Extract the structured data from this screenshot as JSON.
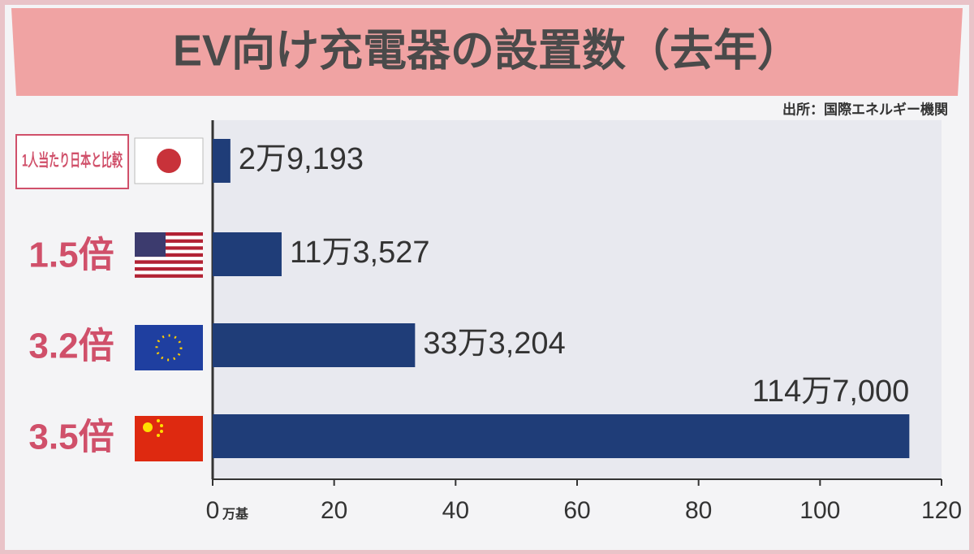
{
  "chart_data": {
    "type": "hbar",
    "title": "EV向け充電器の設置数（去年）",
    "source": "出所：国際エネルギー機関",
    "comparison_note": "1人当たり日本と比較",
    "ratios": [
      null,
      "1.5倍",
      "3.2倍",
      "3.5倍"
    ],
    "values": [
      2.9193,
      11.3527,
      33.3204,
      114.7
    ],
    "value_labels": [
      "2万9,193",
      "11万3,527",
      "33万3,204",
      "114万7,000"
    ],
    "color": "#1f3d78",
    "xlim": [
      0,
      120
    ],
    "xticks": [
      0,
      20,
      40,
      60,
      80,
      100,
      120
    ],
    "x_unit": "万基"
  }
}
